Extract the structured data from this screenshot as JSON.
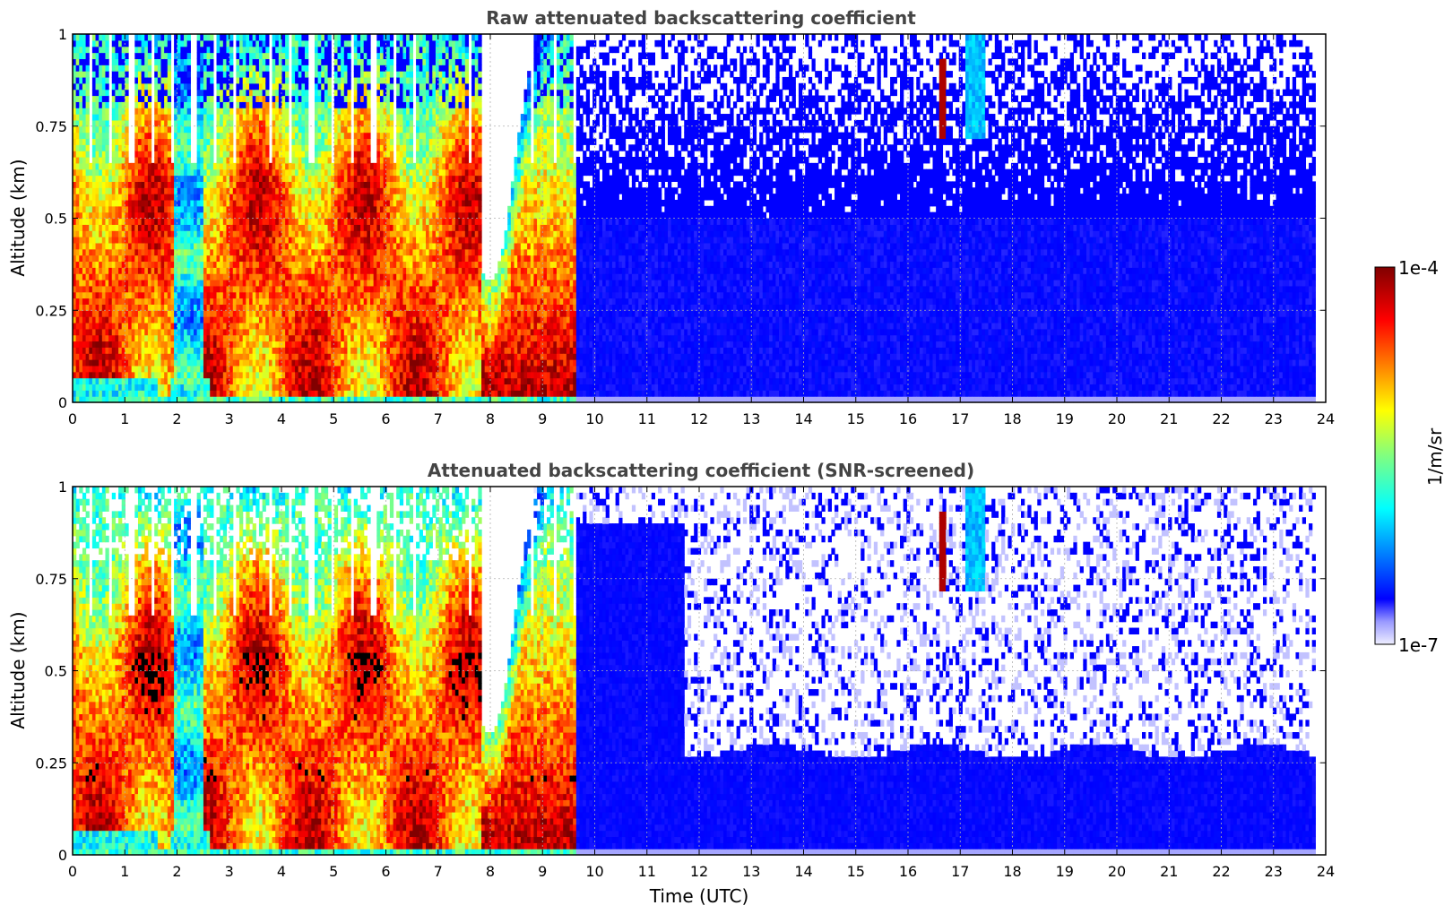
{
  "chart_data": [
    {
      "type": "heatmap",
      "title": "Raw attenuated backscattering coefficient",
      "xlabel": "",
      "ylabel": "Altitude (km)",
      "xlim": [
        0,
        24
      ],
      "ylim": [
        0,
        1
      ],
      "x_ticks": [
        "0",
        "1",
        "2",
        "3",
        "4",
        "5",
        "6",
        "7",
        "8",
        "9",
        "10",
        "11",
        "12",
        "13",
        "14",
        "15",
        "16",
        "17",
        "18",
        "19",
        "20",
        "21",
        "22",
        "23",
        "24"
      ],
      "y_ticks": [
        "0",
        "0.25",
        "0.5",
        "0.75",
        "1"
      ],
      "grid": true,
      "variant": "raw",
      "colorscale": "jet",
      "data_end_x": 23.8
    },
    {
      "type": "heatmap",
      "title": "Attenuated backscattering coefficient (SNR-screened)",
      "xlabel": "Time (UTC)",
      "ylabel": "Altitude (km)",
      "xlim": [
        0,
        24
      ],
      "ylim": [
        0,
        1
      ],
      "x_ticks": [
        "0",
        "1",
        "2",
        "3",
        "4",
        "5",
        "6",
        "7",
        "8",
        "9",
        "10",
        "11",
        "12",
        "13",
        "14",
        "15",
        "16",
        "17",
        "18",
        "19",
        "20",
        "21",
        "22",
        "23",
        "24"
      ],
      "y_ticks": [
        "0",
        "0.25",
        "0.5",
        "0.75",
        "1"
      ],
      "grid": true,
      "variant": "screened",
      "colorscale": "jet",
      "data_end_x": 23.8
    }
  ],
  "colorbar": {
    "max_label": "1e-4",
    "min_label": "1e-7",
    "unit_label": "1/m/sr",
    "scale": "log"
  }
}
